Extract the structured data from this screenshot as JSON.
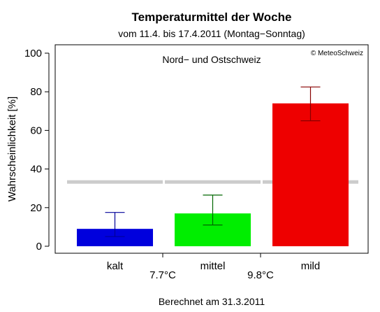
{
  "chart_data": {
    "type": "bar",
    "title": "Temperaturmittel der Woche",
    "subtitle": "vom 11.4. bis 17.4.2011 (Montag−Sonntag)",
    "region_label": "Nord− und Ostschweiz",
    "copyright": "© MeteoSchweiz",
    "ylabel": "Wahrscheinlichkeit [%]",
    "ylim": [
      0,
      100
    ],
    "yticks": [
      "0",
      "20",
      "40",
      "60",
      "80",
      "100"
    ],
    "categories": [
      "kalt",
      "mittel",
      "mild"
    ],
    "values": [
      9,
      17,
      74
    ],
    "error_low": [
      5,
      11,
      65
    ],
    "error_high": [
      17.5,
      26.5,
      82.5
    ],
    "colors": [
      "#0000dd",
      "#00ee00",
      "#ee0000"
    ],
    "error_colors": [
      "#000099",
      "#006600",
      "#880000"
    ],
    "reference_line": 33.3,
    "reference_color": "#cccccc",
    "thresholds": [
      "7.7°C",
      "9.8°C"
    ],
    "footer": "Berechnet am 31.3.2011",
    "grid": false
  }
}
